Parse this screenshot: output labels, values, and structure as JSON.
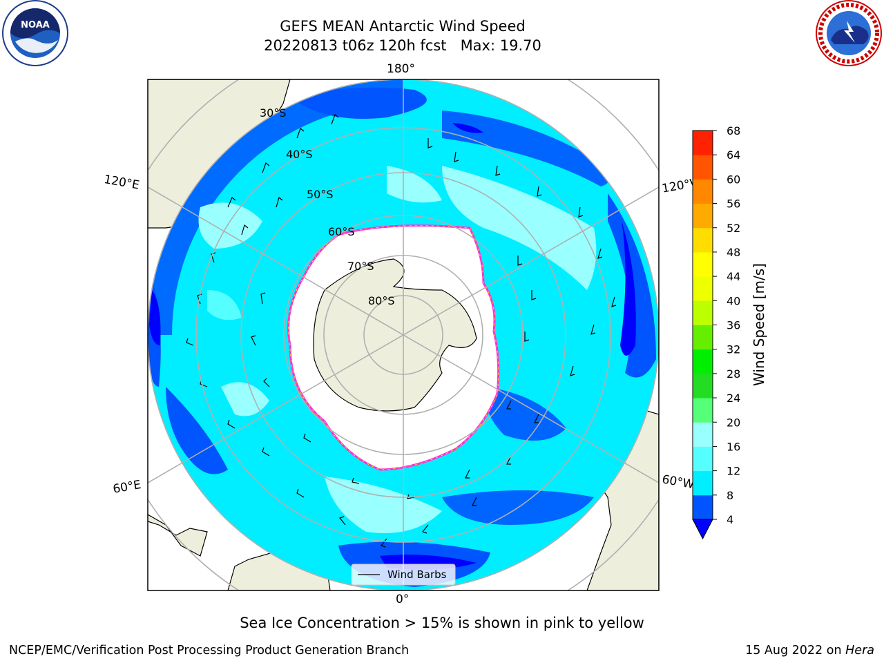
{
  "title": {
    "line1": "GEFS MEAN Antarctic Wind Speed",
    "line2": "20220813 t06z 120h fcst   Max: 19.70"
  },
  "subtitle": "Sea Ice Concentration > 15% is shown in pink to yellow",
  "footer": {
    "left": "NCEP/EMC/Verification Post Processing Product Generation Branch",
    "date": "15 Aug 2022 on",
    "host": "Hera"
  },
  "logos": {
    "left": {
      "icon": "noaa-logo",
      "text": "NOAA"
    },
    "right": {
      "icon": "nws-logo",
      "text": "NATIONAL WEATHER SERVICE"
    }
  },
  "map": {
    "projection": "south-polar-stereographic",
    "lon_labels": {
      "top": "180°",
      "bottom": "0°",
      "upper_left": "120°E",
      "upper_right": "120°W",
      "lower_left": "60°E",
      "lower_right": "60°W"
    },
    "lat_labels": [
      "30°S",
      "40°S",
      "50°S",
      "60°S",
      "70°S",
      "80°S"
    ],
    "legend": {
      "label": "Wind Barbs"
    },
    "colors": {
      "land": "#eeeedd",
      "ocean_dark": "#0055ff",
      "ocean_mid": "#00eeff",
      "ocean_light": "#99ffff",
      "sea_ice_edge": "#ff33cc",
      "ice_yellow": "#ffcc33"
    }
  },
  "colorbar": {
    "label": "Wind Speed [m/s]",
    "ticks": [
      "4",
      "8",
      "12",
      "16",
      "20",
      "24",
      "28",
      "32",
      "36",
      "40",
      "44",
      "48",
      "52",
      "56",
      "60",
      "64",
      "68"
    ],
    "colors": [
      "#0055ff",
      "#00eeff",
      "#55ffff",
      "#99ffff",
      "#55ff77",
      "#22dd22",
      "#00ee00",
      "#66ee00",
      "#bbff00",
      "#eeff00",
      "#ffff00",
      "#ffdd00",
      "#ffaa00",
      "#ff8800",
      "#ff5500",
      "#ff2200"
    ],
    "extend_color": "#0000ff"
  }
}
